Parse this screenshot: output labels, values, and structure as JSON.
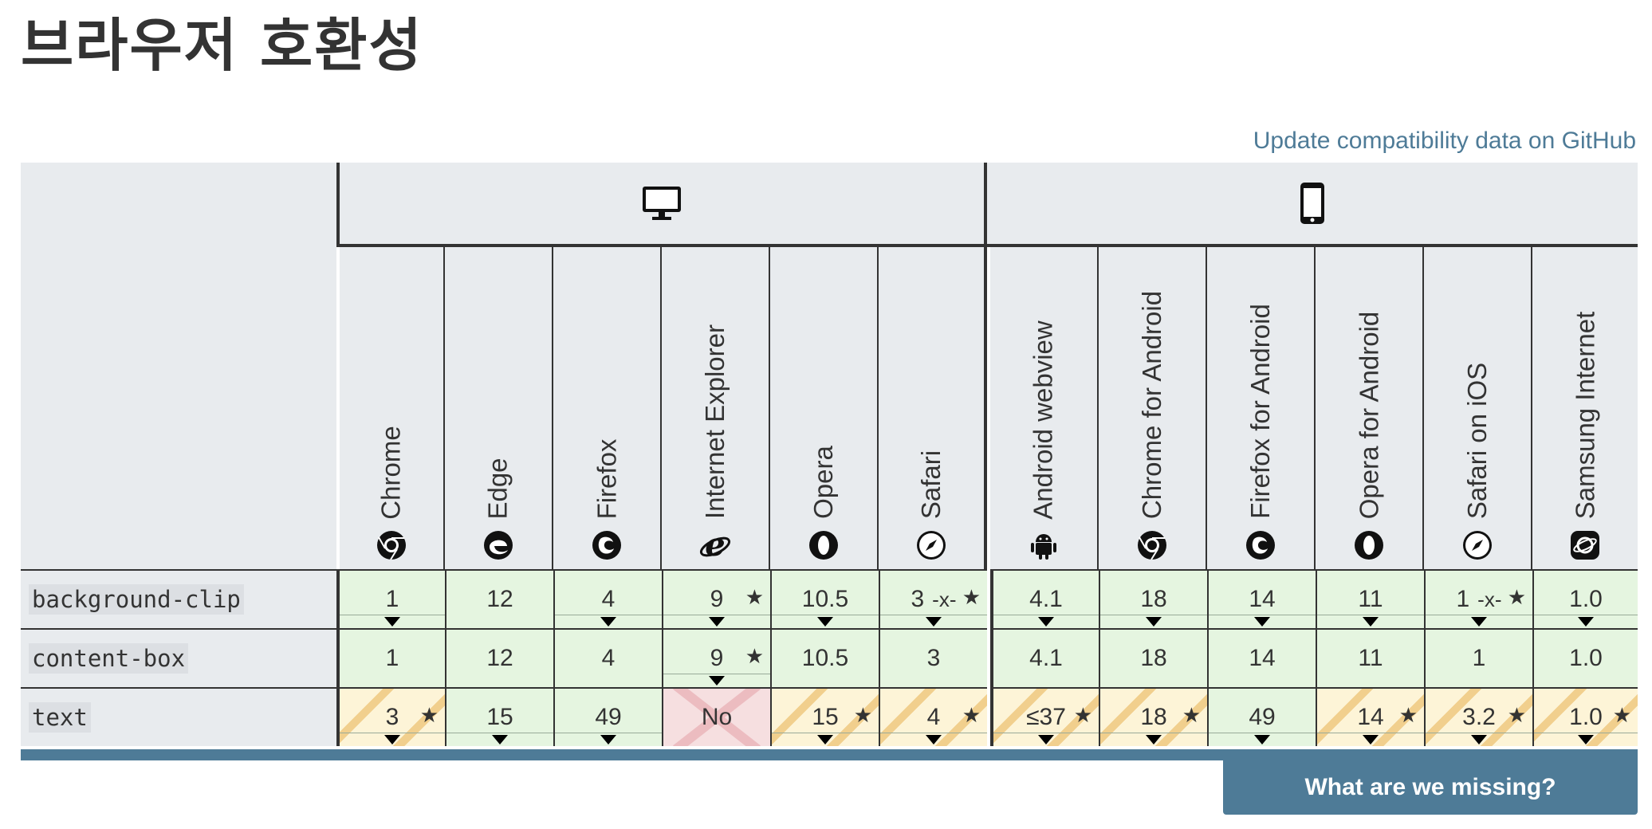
{
  "title": "브라우저 호환성",
  "github_link": "Update compatibility data on GitHub",
  "groups": [
    {
      "name": "desktop",
      "icon": "desktop-icon"
    },
    {
      "name": "mobile",
      "icon": "mobile-icon"
    }
  ],
  "browsers": [
    {
      "name": "Chrome",
      "icon": "chrome-icon"
    },
    {
      "name": "Edge",
      "icon": "edge-icon"
    },
    {
      "name": "Firefox",
      "icon": "firefox-icon"
    },
    {
      "name": "Internet Explorer",
      "icon": "ie-icon"
    },
    {
      "name": "Opera",
      "icon": "opera-icon"
    },
    {
      "name": "Safari",
      "icon": "safari-icon"
    },
    {
      "name": "Android webview",
      "icon": "android-icon"
    },
    {
      "name": "Chrome for Android",
      "icon": "chrome-icon"
    },
    {
      "name": "Firefox for Android",
      "icon": "firefox-icon"
    },
    {
      "name": "Opera for Android",
      "icon": "opera-icon"
    },
    {
      "name": "Safari on iOS",
      "icon": "safari-icon"
    },
    {
      "name": "Samsung Internet",
      "icon": "samsung-icon"
    }
  ],
  "rows": [
    {
      "feature": "background-clip",
      "cells": [
        {
          "v": "1",
          "s": "yes",
          "star": false,
          "prefix": "",
          "toggle": true
        },
        {
          "v": "12",
          "s": "yes",
          "star": false,
          "prefix": "",
          "toggle": false
        },
        {
          "v": "4",
          "s": "yes",
          "star": false,
          "prefix": "",
          "toggle": true
        },
        {
          "v": "9",
          "s": "yes",
          "star": true,
          "prefix": "",
          "toggle": true
        },
        {
          "v": "10.5",
          "s": "yes",
          "star": false,
          "prefix": "",
          "toggle": true
        },
        {
          "v": "3",
          "s": "yes",
          "star": true,
          "prefix": "-x-",
          "toggle": true
        },
        {
          "v": "4.1",
          "s": "yes",
          "star": false,
          "prefix": "",
          "toggle": true
        },
        {
          "v": "18",
          "s": "yes",
          "star": false,
          "prefix": "",
          "toggle": true
        },
        {
          "v": "14",
          "s": "yes",
          "star": false,
          "prefix": "",
          "toggle": true
        },
        {
          "v": "11",
          "s": "yes",
          "star": false,
          "prefix": "",
          "toggle": true
        },
        {
          "v": "1",
          "s": "yes",
          "star": true,
          "prefix": "-x-",
          "toggle": true
        },
        {
          "v": "1.0",
          "s": "yes",
          "star": false,
          "prefix": "",
          "toggle": true
        }
      ]
    },
    {
      "feature": "content-box",
      "cells": [
        {
          "v": "1",
          "s": "yes",
          "star": false,
          "prefix": "",
          "toggle": false
        },
        {
          "v": "12",
          "s": "yes",
          "star": false,
          "prefix": "",
          "toggle": false
        },
        {
          "v": "4",
          "s": "yes",
          "star": false,
          "prefix": "",
          "toggle": false
        },
        {
          "v": "9",
          "s": "yes",
          "star": true,
          "prefix": "",
          "toggle": true
        },
        {
          "v": "10.5",
          "s": "yes",
          "star": false,
          "prefix": "",
          "toggle": false
        },
        {
          "v": "3",
          "s": "yes",
          "star": false,
          "prefix": "",
          "toggle": false
        },
        {
          "v": "4.1",
          "s": "yes",
          "star": false,
          "prefix": "",
          "toggle": false
        },
        {
          "v": "18",
          "s": "yes",
          "star": false,
          "prefix": "",
          "toggle": false
        },
        {
          "v": "14",
          "s": "yes",
          "star": false,
          "prefix": "",
          "toggle": false
        },
        {
          "v": "11",
          "s": "yes",
          "star": false,
          "prefix": "",
          "toggle": false
        },
        {
          "v": "1",
          "s": "yes",
          "star": false,
          "prefix": "",
          "toggle": false
        },
        {
          "v": "1.0",
          "s": "yes",
          "star": false,
          "prefix": "",
          "toggle": false
        }
      ]
    },
    {
      "feature": "text",
      "cells": [
        {
          "v": "3",
          "s": "partial",
          "star": true,
          "prefix": "",
          "toggle": true
        },
        {
          "v": "15",
          "s": "yes",
          "star": false,
          "prefix": "",
          "toggle": true
        },
        {
          "v": "49",
          "s": "yes",
          "star": false,
          "prefix": "",
          "toggle": true
        },
        {
          "v": "No",
          "s": "no",
          "star": false,
          "prefix": "",
          "toggle": false
        },
        {
          "v": "15",
          "s": "partial",
          "star": true,
          "prefix": "",
          "toggle": true
        },
        {
          "v": "4",
          "s": "partial",
          "star": true,
          "prefix": "",
          "toggle": true
        },
        {
          "v": "≤37",
          "s": "partial",
          "star": true,
          "prefix": "",
          "toggle": true
        },
        {
          "v": "18",
          "s": "partial",
          "star": true,
          "prefix": "",
          "toggle": true
        },
        {
          "v": "49",
          "s": "yes",
          "star": false,
          "prefix": "",
          "toggle": true
        },
        {
          "v": "14",
          "s": "partial",
          "star": true,
          "prefix": "",
          "toggle": true
        },
        {
          "v": "3.2",
          "s": "partial",
          "star": true,
          "prefix": "",
          "toggle": true
        },
        {
          "v": "1.0",
          "s": "partial",
          "star": true,
          "prefix": "",
          "toggle": true
        }
      ]
    }
  ],
  "star_symbol": "★",
  "missing_button": "What are we missing?",
  "colors": {
    "header_bg": "#e8ebee",
    "yes": "#e5f5e0",
    "partial": "#fdf4d7",
    "no": "#f6dfe0",
    "accent": "#4e7b97"
  }
}
